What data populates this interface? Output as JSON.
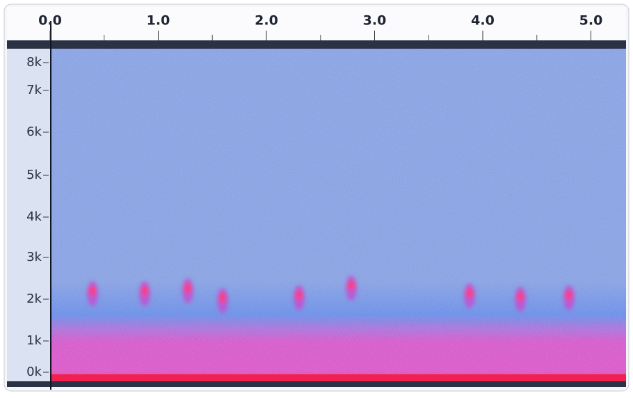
{
  "time_ruler": {
    "ticks": [
      "0.0",
      "1.0",
      "2.0",
      "3.0",
      "4.0",
      "5.0"
    ]
  },
  "frequency_axis": {
    "ticks": [
      "8k",
      "7k",
      "6k",
      "5k",
      "4k",
      "3k",
      "2k",
      "1k",
      "0k"
    ]
  }
}
